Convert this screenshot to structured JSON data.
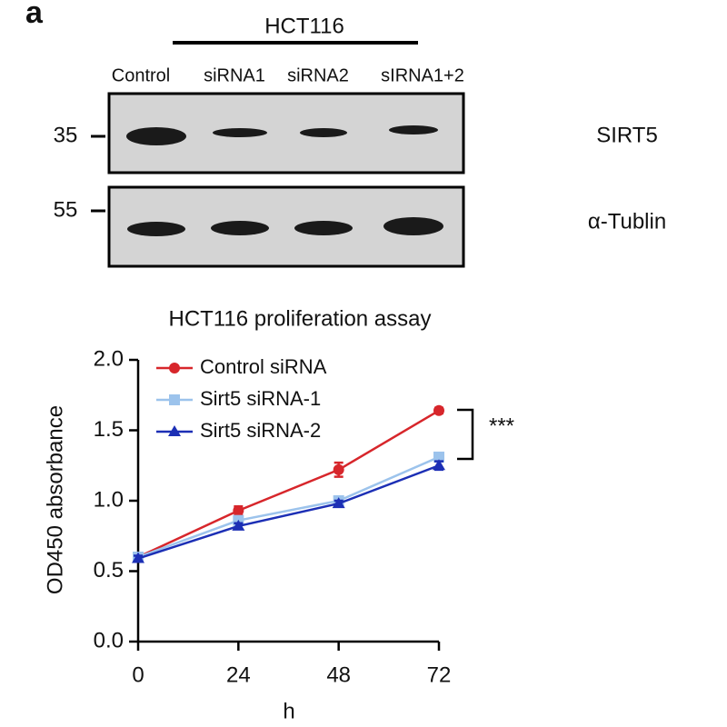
{
  "blot": {
    "panel_label": "a",
    "cell_line": "HCT116",
    "lanes": [
      "Control",
      "siRNA1",
      "siRNA2",
      "sIRNA1+2"
    ],
    "markers": [
      "35",
      "55"
    ],
    "proteins": [
      "SIRT5",
      "α-Tublin"
    ]
  },
  "chart_data": {
    "type": "line",
    "title": "HCT116 proliferation assay",
    "x_label": "h",
    "y_label": "OD450  absorbance",
    "x": [
      0,
      24,
      48,
      72
    ],
    "xlim": [
      0,
      72
    ],
    "xticks": [
      0,
      24,
      48,
      72
    ],
    "ylim": [
      0,
      2
    ],
    "yticks": [
      {
        "value": 0,
        "label": "0.0"
      },
      {
        "value": 0.5,
        "label": "0.5"
      },
      {
        "value": 1,
        "label": "1.0"
      },
      {
        "value": 1.5,
        "label": "1.5"
      },
      {
        "value": 2,
        "label": "2.0"
      }
    ],
    "series": [
      {
        "name": "Control siRNA",
        "color": "#d7262b",
        "marker": "circle",
        "values": [
          0.6,
          0.93,
          1.22,
          1.64
        ],
        "errors": [
          0.02,
          0.03,
          0.05,
          0.02
        ]
      },
      {
        "name": "Sirt5 siRNA-1",
        "color": "#9cc3ec",
        "marker": "square",
        "values": [
          0.6,
          0.86,
          1.0,
          1.31
        ],
        "errors": [
          0.02,
          0.02,
          0.02,
          0.03
        ]
      },
      {
        "name": "Sirt5 siRNA-2",
        "color": "#1c2fb5",
        "marker": "triangle",
        "values": [
          0.59,
          0.82,
          0.98,
          1.25
        ],
        "errors": [
          0.02,
          0.02,
          0.02,
          0.03
        ]
      }
    ],
    "annotation": "***",
    "legend": "upper left"
  }
}
